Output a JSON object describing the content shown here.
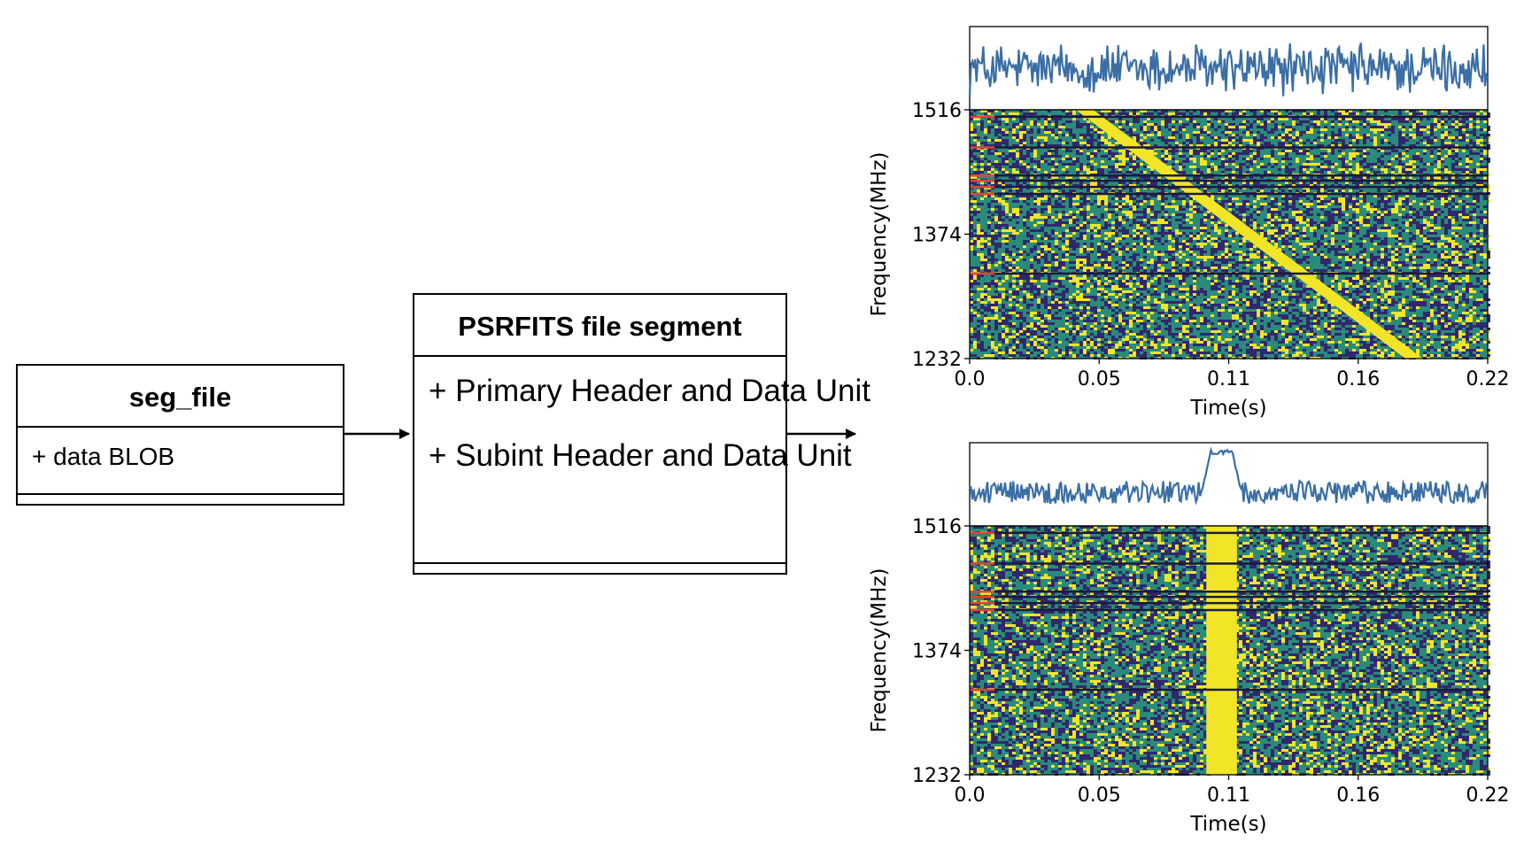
{
  "seg_file": {
    "title": "seg_file",
    "attributes": [
      "+ data BLOB"
    ]
  },
  "psrfits": {
    "title": "PSRFITS file segment",
    "attributes": [
      "+ Primary Header and Data Unit",
      "+ Subint Header and Data Unit"
    ]
  },
  "colors": {
    "profile": "#3a6ea5",
    "pulse": "#f2e527",
    "low": "#31276e",
    "mid": "#2a8b7a",
    "mask": "#1c1a3e",
    "mask_tick": "#e0453a"
  },
  "chart_data": [
    {
      "type": "heatmap",
      "title": "",
      "xlabel": "Time(s)",
      "ylabel": "Frequency(MHz)",
      "x_ticks": [
        "0.0",
        "0.05",
        "0.11",
        "0.16",
        "0.22"
      ],
      "y_ticks": [
        "1516",
        "1374",
        "1232"
      ],
      "xlim": [
        0,
        0.22
      ],
      "ylim": [
        1232,
        1516
      ],
      "pulse": {
        "kind": "dispersed",
        "time_at_top_s": 0.045,
        "time_at_bottom_s": 0.185
      },
      "masked_channels_mhz": [
        1508,
        1473,
        1441,
        1435,
        1428,
        1420,
        1329
      ],
      "profile": {
        "style": "noise"
      }
    },
    {
      "type": "heatmap",
      "title": "",
      "xlabel": "Time(s)",
      "ylabel": "Frequency(MHz)",
      "x_ticks": [
        "0.0",
        "0.05",
        "0.11",
        "0.16",
        "0.22"
      ],
      "y_ticks": [
        "1516",
        "1374",
        "1232"
      ],
      "xlim": [
        0,
        0.22
      ],
      "ylim": [
        1232,
        1516
      ],
      "pulse": {
        "kind": "dedispersed",
        "time_s": 0.107,
        "width_s": 0.013
      },
      "masked_channels_mhz": [
        1508,
        1473,
        1441,
        1435,
        1428,
        1420,
        1329
      ],
      "profile": {
        "style": "peak",
        "peak_time_s": 0.107
      }
    }
  ]
}
